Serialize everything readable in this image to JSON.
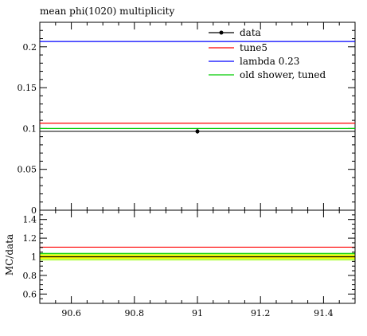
{
  "chart_data": {
    "type": "line",
    "title": "mean phi(1020) multiplicity",
    "xlabel": "",
    "ylabel": "",
    "xlim": [
      90.5,
      91.5
    ],
    "ylim": [
      0,
      0.23
    ],
    "x_ticks": [
      {
        "v": 90.6,
        "label": "90.6"
      },
      {
        "v": 90.8,
        "label": "90.8"
      },
      {
        "v": 91.0,
        "label": "91"
      },
      {
        "v": 91.2,
        "label": "91.2"
      },
      {
        "v": 91.4,
        "label": "91.4"
      }
    ],
    "y_ticks": [
      {
        "v": 0,
        "label": "0"
      },
      {
        "v": 0.05,
        "label": "0.05"
      },
      {
        "v": 0.1,
        "label": "0.1"
      },
      {
        "v": 0.15,
        "label": "0.15"
      },
      {
        "v": 0.2,
        "label": "0.2"
      }
    ],
    "legend_position": "top-right",
    "series": [
      {
        "name": "data",
        "kind": "points",
        "color": "#000000",
        "x": [
          91.0
        ],
        "y": [
          0.0965
        ],
        "yerr": [
          0.003
        ]
      },
      {
        "name": "tune5",
        "kind": "hist",
        "color": "#ff0000",
        "value": 0.1065
      },
      {
        "name": "lambda 0.23",
        "kind": "hist",
        "color": "#0000ff",
        "value": 0.2065
      },
      {
        "name": "old shower, tuned",
        "kind": "hist",
        "color": "#00cc00",
        "value": 0.1
      }
    ],
    "data_line": {
      "value": 0.0965,
      "color": "#000000"
    },
    "ratio": {
      "ylabel": "MC/data",
      "ylim": [
        0.5,
        1.5
      ],
      "y_ticks": [
        {
          "v": 0.6,
          "label": "0.6"
        },
        {
          "v": 0.8,
          "label": "0.8"
        },
        {
          "v": 1.0,
          "label": "1"
        },
        {
          "v": 1.2,
          "label": "1.2"
        },
        {
          "v": 1.4,
          "label": "1.4"
        }
      ],
      "band_outer": [
        0.96,
        1.04
      ],
      "band_inner": [
        0.98,
        1.02
      ],
      "band_outer_color": "#b3ff4d",
      "band_inner_color": "#ffff00",
      "lines": [
        {
          "name": "tune5",
          "color": "#ff0000",
          "value": 1.103
        },
        {
          "name": "old shower, tuned",
          "color": "#00cc00",
          "value": 1.036
        },
        {
          "name": "data",
          "color": "#000000",
          "value": 1.0
        }
      ]
    }
  }
}
